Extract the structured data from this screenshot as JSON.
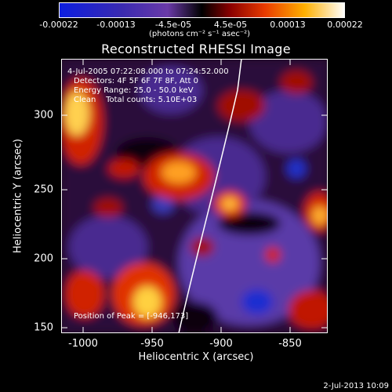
{
  "colorbar": {
    "tick_labels": [
      "-0.00022",
      "-0.00013",
      "-4.5e-05",
      "4.5e-05",
      "0.00013",
      "0.00022"
    ],
    "units": "(photons cm⁻² s⁻¹ asec⁻²)"
  },
  "plot": {
    "title": "Reconstructed RHESSI Image",
    "xlabel": "Heliocentric X (arcsec)",
    "ylabel": "Heliocentric Y (arcsec)",
    "x_ticks": [
      "-1000",
      "-950",
      "-900",
      "-850"
    ],
    "y_ticks": [
      "300",
      "250",
      "200",
      "150"
    ]
  },
  "annotations": {
    "time_range": "4-Jul-2005 07:22:08.000 to 07:24:52.000",
    "detectors": "Detectors: 4F 5F 6F 7F 8F, Att 0",
    "energy": "Energy Range: 25.0 - 50.0 keV",
    "method_counts": "Clean    Total counts: 5.10E+03",
    "peak": "Position of Peak = [-946,173]"
  },
  "timestamp": "2-Jul-2013 10:09",
  "colors": {
    "background": "#000000",
    "limb_line": "#ffffff"
  }
}
